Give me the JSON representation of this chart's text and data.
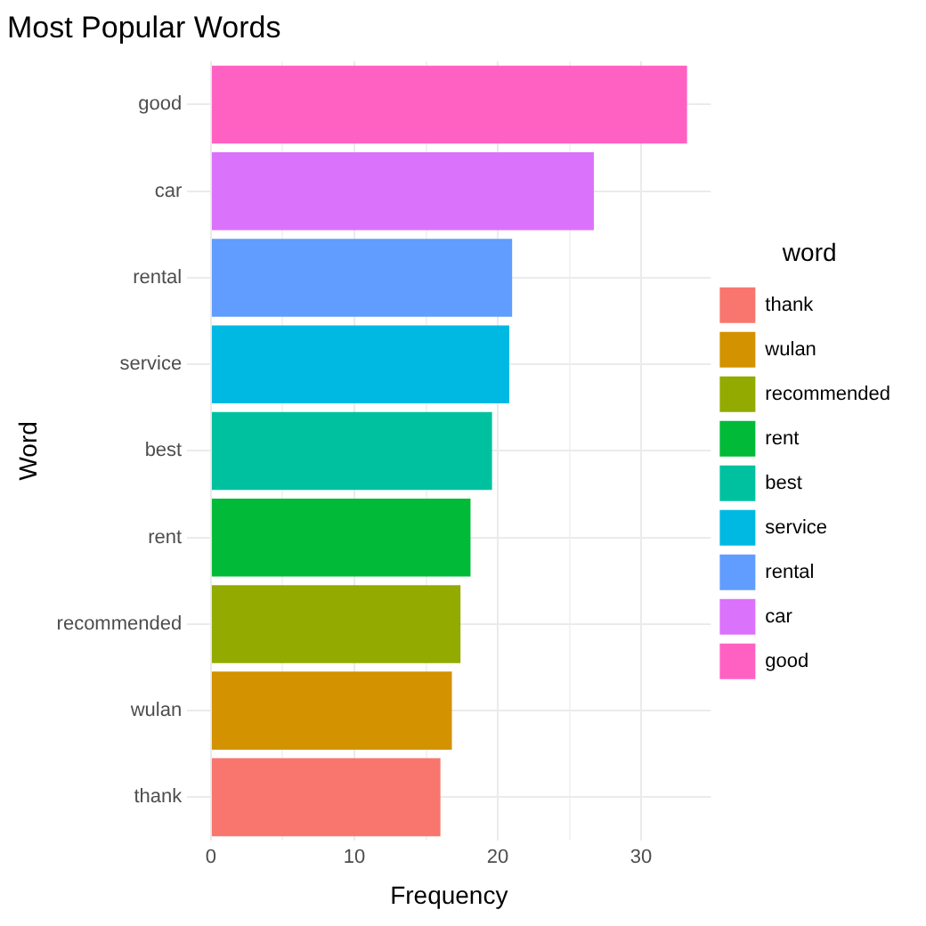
{
  "chart_data": {
    "type": "bar",
    "orientation": "horizontal",
    "title": "Most Popular Words",
    "xlabel": "Frequency",
    "ylabel": "Word",
    "legend_title": "word",
    "legend": "right",
    "grid": true,
    "categories": [
      "good",
      "car",
      "rental",
      "service",
      "best",
      "rent",
      "recommended",
      "wulan",
      "thank"
    ],
    "series": [
      {
        "name": "thank",
        "color": "#f8766d",
        "values": [
          null,
          null,
          null,
          null,
          null,
          null,
          null,
          null,
          16.0
        ]
      },
      {
        "name": "wulan",
        "color": "#d39200",
        "values": [
          null,
          null,
          null,
          null,
          null,
          null,
          null,
          16.8,
          null
        ]
      },
      {
        "name": "recommended",
        "color": "#93aa00",
        "values": [
          null,
          null,
          null,
          null,
          null,
          null,
          17.4,
          null,
          null
        ]
      },
      {
        "name": "rent",
        "color": "#00ba38",
        "values": [
          null,
          null,
          null,
          null,
          null,
          18.1,
          null,
          null,
          null
        ]
      },
      {
        "name": "best",
        "color": "#00c19f",
        "values": [
          null,
          null,
          null,
          null,
          19.6,
          null,
          null,
          null,
          null
        ]
      },
      {
        "name": "service",
        "color": "#00b9e3",
        "values": [
          null,
          null,
          null,
          20.8,
          null,
          null,
          null,
          null,
          null
        ]
      },
      {
        "name": "rental",
        "color": "#619cff",
        "values": [
          null,
          null,
          21.0,
          null,
          null,
          null,
          null,
          null,
          null
        ]
      },
      {
        "name": "car",
        "color": "#db72fb",
        "values": [
          null,
          26.7,
          null,
          null,
          null,
          null,
          null,
          null,
          null
        ]
      },
      {
        "name": "good",
        "color": "#ff61c3",
        "values": [
          33.2,
          null,
          null,
          null,
          null,
          null,
          null,
          null,
          null
        ]
      }
    ],
    "xlim": [
      -1.66,
      34.86
    ],
    "xticks": [
      0,
      {
        "value": 5,
        "label": null
      },
      10,
      {
        "value": 15,
        "label": null
      },
      20,
      {
        "value": 25,
        "label": null
      },
      30
    ]
  }
}
